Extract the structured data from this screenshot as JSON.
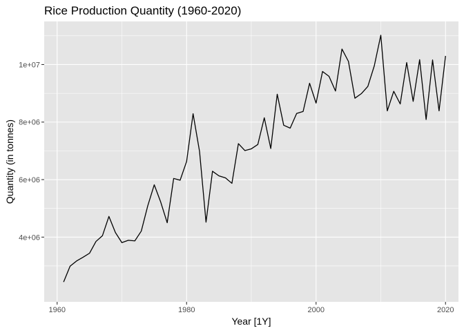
{
  "chart_data": {
    "type": "line",
    "title": "Rice Production Quantity (1960-2020)",
    "xlabel": "Year [1Y]",
    "ylabel": "Quantity (in tonnes)",
    "xlim": [
      1958,
      2022
    ],
    "ylim": [
      1750000,
      11500000
    ],
    "x_ticks": [
      1960,
      1980,
      2000,
      2020
    ],
    "x_tick_labels": [
      "1960",
      "1980",
      "2000",
      "2020"
    ],
    "y_ticks": [
      4000000,
      6000000,
      8000000,
      10000000
    ],
    "y_tick_labels": [
      "4e+06",
      "6e+06",
      "8e+06",
      "1e+07"
    ],
    "grid": true,
    "colors": {
      "panel": "#e5e5e5",
      "grid_major": "#ffffff",
      "line": "#000000",
      "tick": "#333333"
    },
    "series": [
      {
        "x": [
          1961,
          1962,
          1963,
          1964,
          1965,
          1966,
          1967,
          1968,
          1969,
          1970,
          1971,
          1972,
          1973,
          1974,
          1975,
          1976,
          1977,
          1978,
          1979,
          1980,
          1981,
          1982,
          1983,
          1984,
          1985,
          1986,
          1987,
          1988,
          1989,
          1990,
          1991,
          1992,
          1993,
          1994,
          1995,
          1996,
          1997,
          1998,
          1999,
          2000,
          2001,
          2002,
          2003,
          2004,
          2005,
          2006,
          2007,
          2008,
          2009,
          2010,
          2011,
          2012,
          2013,
          2014,
          2015,
          2016,
          2017,
          2018,
          2019,
          2020
        ],
        "values": [
          2440000,
          2990000,
          3170000,
          3300000,
          3440000,
          3850000,
          4050000,
          4720000,
          4160000,
          3810000,
          3890000,
          3870000,
          4210000,
          5090000,
          5820000,
          5220000,
          4500000,
          6040000,
          5980000,
          6630000,
          8290000,
          6980000,
          4520000,
          6290000,
          6130000,
          6060000,
          5870000,
          7250000,
          7010000,
          7070000,
          7220000,
          8150000,
          7080000,
          8970000,
          7890000,
          7790000,
          8300000,
          8370000,
          9350000,
          8660000,
          9760000,
          9590000,
          9080000,
          10540000,
          10110000,
          8830000,
          8990000,
          9240000,
          9960000,
          11020000,
          8390000,
          9070000,
          8630000,
          10070000,
          8720000,
          10170000,
          8090000,
          10160000,
          8390000,
          10300000
        ]
      }
    ]
  }
}
